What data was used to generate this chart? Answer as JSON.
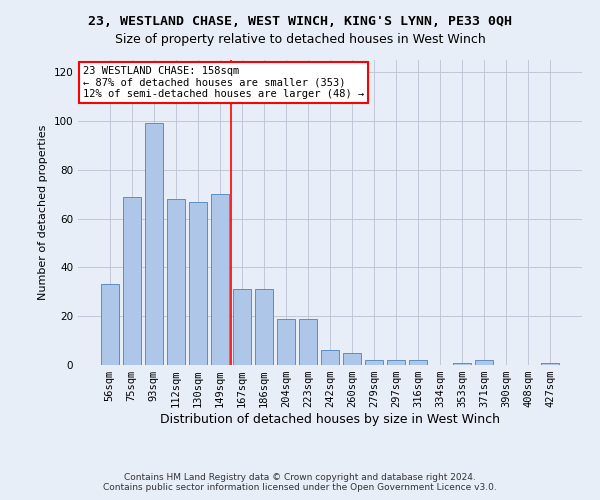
{
  "title1": "23, WESTLAND CHASE, WEST WINCH, KING'S LYNN, PE33 0QH",
  "title2": "Size of property relative to detached houses in West Winch",
  "xlabel": "Distribution of detached houses by size in West Winch",
  "ylabel": "Number of detached properties",
  "categories": [
    "56sqm",
    "75sqm",
    "93sqm",
    "112sqm",
    "130sqm",
    "149sqm",
    "167sqm",
    "186sqm",
    "204sqm",
    "223sqm",
    "242sqm",
    "260sqm",
    "279sqm",
    "297sqm",
    "316sqm",
    "334sqm",
    "353sqm",
    "371sqm",
    "390sqm",
    "408sqm",
    "427sqm"
  ],
  "values": [
    33,
    69,
    99,
    68,
    67,
    70,
    31,
    31,
    19,
    19,
    6,
    5,
    2,
    2,
    2,
    0,
    1,
    2,
    0,
    0,
    1
  ],
  "bar_color": "#aec6e8",
  "bar_edge_color": "#5a8fc2",
  "vline_x": 5.5,
  "vline_color": "red",
  "annotation_line1": "23 WESTLAND CHASE: 158sqm",
  "annotation_line2": "← 87% of detached houses are smaller (353)",
  "annotation_line3": "12% of semi-detached houses are larger (48) →",
  "annotation_box_color": "white",
  "annotation_box_edge_color": "red",
  "ylim": [
    0,
    125
  ],
  "yticks": [
    0,
    20,
    40,
    60,
    80,
    100,
    120
  ],
  "footer1": "Contains HM Land Registry data © Crown copyright and database right 2024.",
  "footer2": "Contains public sector information licensed under the Open Government Licence v3.0.",
  "bg_color": "#e8eef8",
  "plot_bg_color": "#e8eef8",
  "title1_fontsize": 9.5,
  "title2_fontsize": 9,
  "ylabel_fontsize": 8,
  "xlabel_fontsize": 9,
  "tick_fontsize": 7.5,
  "footer_fontsize": 6.5,
  "annot_fontsize": 7.5
}
